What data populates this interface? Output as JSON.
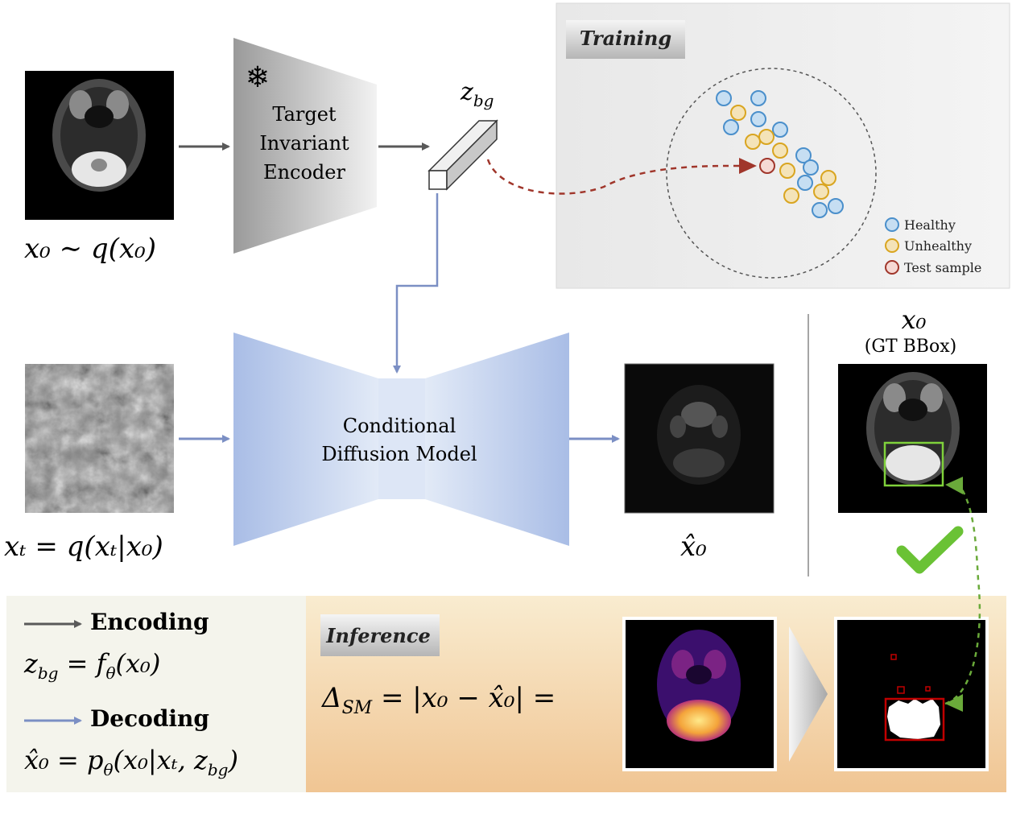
{
  "encoder": {
    "line1": "Target",
    "line2": "Invariant",
    "line3": "Encoder",
    "frozen_icon": "snowflake-icon",
    "glyph": "❄"
  },
  "diffusion": {
    "line1": "Conditional",
    "line2": "Diffusion Model"
  },
  "math": {
    "x0_dist": "x₀ ∼ q(x₀)",
    "z_bg": "z",
    "z_bg_sub": "bg",
    "xt": "xₜ = q(xₜ|x₀)",
    "x0_hat": "x̂₀",
    "x0_gt": "x₀",
    "gt_bbox": "(GT BBox)",
    "enc_eq_lhs": "z",
    "enc_eq_sub": "bg",
    "enc_eq_rhs": " = f",
    "enc_eq_theta": "θ",
    "enc_eq_arg": "(x₀)",
    "dec_eq_lhs": "x̂₀ = p",
    "dec_eq_theta": "θ",
    "dec_eq_arg": "(x₀|xₜ, z",
    "dec_eq_sub": "bg",
    "dec_eq_close": ")",
    "delta_lhs": "Δ",
    "delta_sub": "SM",
    "delta_rhs": " = |x₀ − x̂₀| ="
  },
  "training": {
    "title": "Training",
    "legend": [
      {
        "label": "Healthy",
        "color": "#4a8fcb"
      },
      {
        "label": "Unhealthy",
        "color": "#d9a520"
      },
      {
        "label": "Test sample",
        "color": "#a0362b"
      }
    ]
  },
  "inference": {
    "title": "Inference"
  },
  "legend_box": {
    "encoding": "Encoding",
    "decoding": "Decoding"
  },
  "colors": {
    "encode_arrow": "#595959",
    "decode_arrow": "#7b8fc4",
    "diffusion_fill": "#b3c7ea",
    "dash_red": "#a0362b",
    "dash_green": "#6aaa3a",
    "bbox_green": "#7fd13b",
    "bbox_red": "#c00000",
    "check": "#6ac235"
  }
}
